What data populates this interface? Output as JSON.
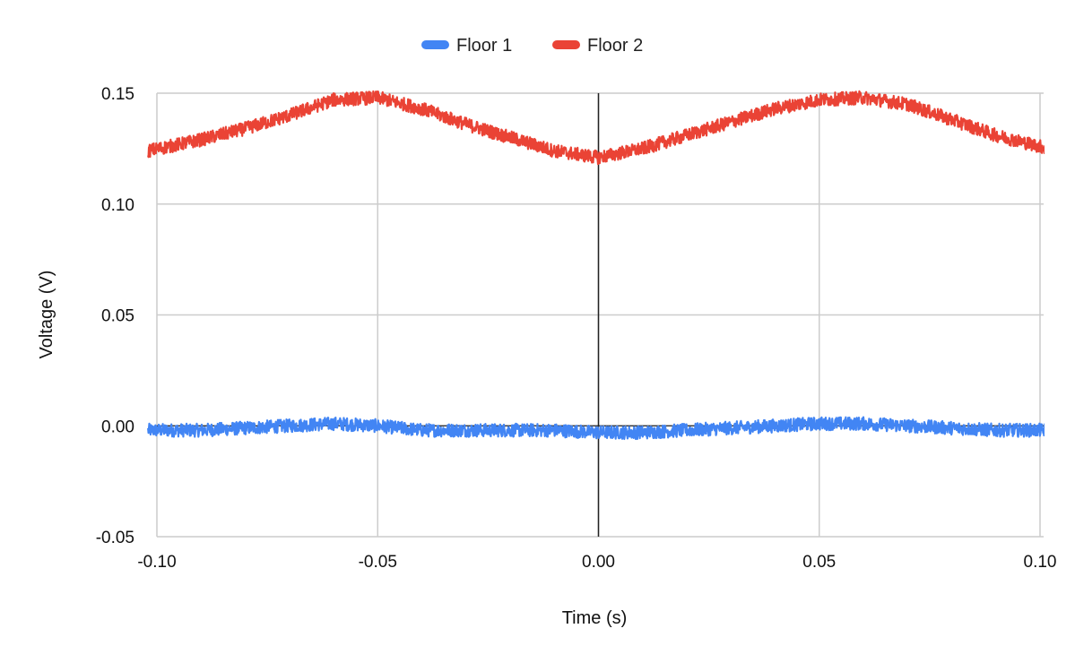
{
  "chart_data": {
    "type": "line",
    "xlabel": "Time (s)",
    "ylabel": "Voltage (V)",
    "xlim": [
      -0.102,
      0.102
    ],
    "ylim": [
      -0.05,
      0.15
    ],
    "x_ticks": [
      -0.1,
      -0.05,
      0.0,
      0.05,
      0.1
    ],
    "x_tick_labels": [
      "-0.10",
      "-0.05",
      "0.00",
      "0.05",
      "0.10"
    ],
    "y_ticks": [
      -0.05,
      0.0,
      0.05,
      0.1,
      0.15
    ],
    "y_tick_labels": [
      "-0.05",
      "0.00",
      "0.05",
      "0.10",
      "0.15"
    ],
    "grid": true,
    "legend_position": "top-center",
    "series": [
      {
        "name": "Floor 1",
        "color": "#4285f4",
        "x": [
          -0.102,
          -0.09,
          -0.08,
          -0.07,
          -0.06,
          -0.05,
          -0.04,
          -0.03,
          -0.02,
          -0.01,
          0.0,
          0.01,
          0.02,
          0.03,
          0.04,
          0.05,
          0.06,
          0.07,
          0.08,
          0.09,
          0.102
        ],
        "y": [
          -0.002,
          -0.002,
          -0.001,
          0.0,
          0.001,
          0.0,
          -0.002,
          -0.002,
          -0.002,
          -0.002,
          -0.003,
          -0.003,
          -0.002,
          -0.001,
          0.0,
          0.001,
          0.001,
          0.0,
          -0.001,
          -0.002,
          -0.002
        ],
        "noise_amplitude": 0.003
      },
      {
        "name": "Floor 2",
        "color": "#ea4335",
        "x": [
          -0.102,
          -0.09,
          -0.08,
          -0.07,
          -0.06,
          -0.05,
          -0.04,
          -0.03,
          -0.02,
          -0.01,
          0.0,
          0.01,
          0.02,
          0.03,
          0.04,
          0.05,
          0.06,
          0.07,
          0.08,
          0.09,
          0.102
        ],
        "y": [
          0.124,
          0.129,
          0.134,
          0.14,
          0.147,
          0.148,
          0.143,
          0.136,
          0.13,
          0.124,
          0.121,
          0.125,
          0.131,
          0.137,
          0.143,
          0.147,
          0.148,
          0.145,
          0.138,
          0.131,
          0.125
        ],
        "noise_amplitude": 0.003
      }
    ]
  }
}
